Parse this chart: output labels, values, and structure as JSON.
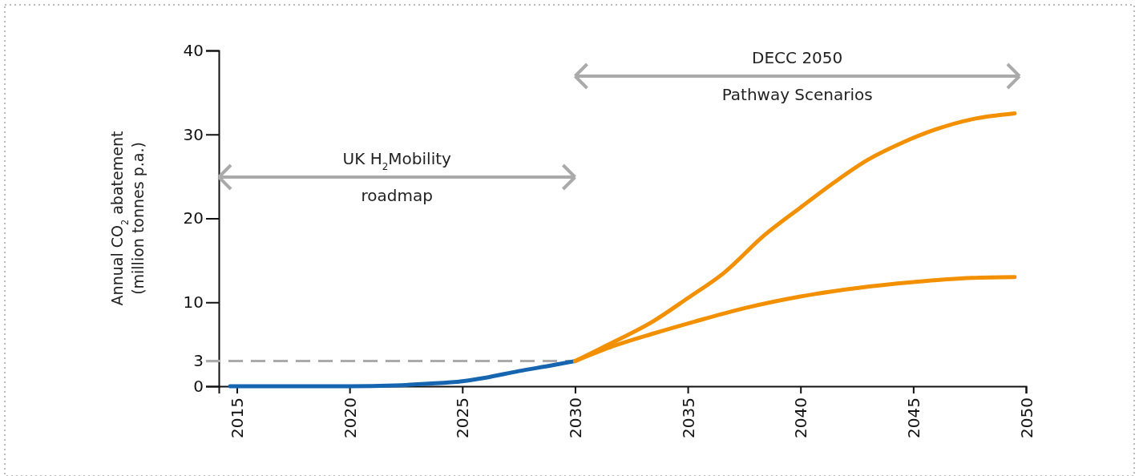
{
  "chart_data": {
    "type": "line",
    "ylabel": "Annual CO$_{2}$ abatement\n(million tonnes p.a.)",
    "xlim": [
      2014.2,
      2050
    ],
    "xticks": [
      2015,
      2020,
      2025,
      2030,
      2035,
      2040,
      2045,
      2050
    ],
    "ylim": [
      0,
      40
    ],
    "yticks": [
      0,
      3,
      10,
      20,
      30,
      40
    ],
    "grid": false,
    "line_style": "solid",
    "marker": "none",
    "series": [
      {
        "color": "#1565b0",
        "x": [
          2014.7,
          2018,
          2020,
          2022,
          2023.5,
          2025,
          2026,
          2027.5,
          2029,
          2030
        ],
        "values": [
          0,
          0,
          0,
          0.1,
          0.3,
          0.6,
          1.0,
          1.8,
          2.5,
          3
        ]
      },
      {
        "color": "#f39000",
        "x": [
          2030,
          2031.5,
          2033.5,
          2035,
          2036.6,
          2038.4,
          2040,
          2041.5,
          2043,
          2044.5,
          2046,
          2047.6,
          2049.5
        ],
        "values": [
          3,
          5.0,
          7.8,
          10.5,
          13.5,
          18.0,
          21.3,
          24.3,
          27.0,
          29.0,
          30.6,
          31.8,
          32.5
        ]
      },
      {
        "color": "#f39000",
        "x": [
          2030,
          2031.5,
          2033.5,
          2035.3,
          2037.5,
          2040,
          2042.5,
          2045,
          2047.6,
          2049.5
        ],
        "values": [
          3,
          4.6,
          6.3,
          7.7,
          9.3,
          10.7,
          11.7,
          12.4,
          12.9,
          13.0
        ]
      }
    ],
    "ref_lines": [
      {
        "axis": "y",
        "value": 3,
        "color": "#aaaaaa",
        "line_style": "dashed"
      }
    ],
    "annotations": [
      "UK H$_{2}$Mobility\nroadmap",
      "DECC 2050\nPathway Scenarios"
    ]
  }
}
